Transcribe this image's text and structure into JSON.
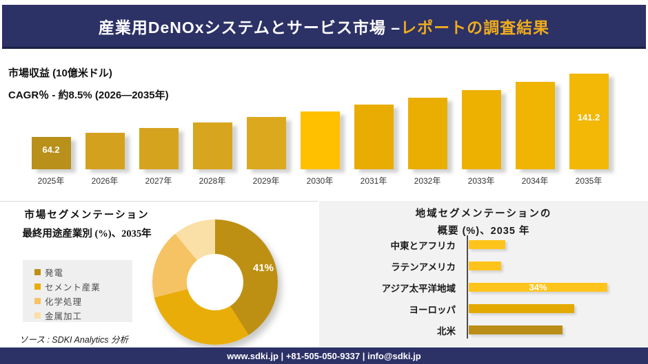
{
  "header": {
    "title_main": "産業用DeNOxシステムとサービス市場 –",
    "title_accent": "レポートの調査結果"
  },
  "revenue_section": {
    "metric_label": "市場収益 (10億米ドル)",
    "cagr_label": "CAGR％ - 約8.5% (2026―2035年)"
  },
  "segmentation_section": {
    "title_line1": "市場セグメンテーション",
    "title_line2": "最終用途産業別 (%)、2035年",
    "highlight_label": "41%"
  },
  "regional_section": {
    "title_line1": "地域セグメンテーションの",
    "title_line2": "概要 (%)、2035 年",
    "highlight_label": "34%"
  },
  "source_note": "ソース : SDKI Analytics 分析",
  "footer": {
    "contact": "www.sdki.jp | +81-505-050-9337 | info@sdki.jp"
  },
  "colors": {
    "navy": "#2C3166",
    "header_accent_yellow": "#EFAC1C"
  },
  "chart_data": [
    {
      "id": "revenue_bars",
      "type": "bar",
      "title": "市場収益 (10億米ドル)",
      "subtitle": "CAGR％ - 約8.5% (2026―2035年)",
      "categories": [
        "2025年",
        "2026年",
        "2027年",
        "2028年",
        "2029年",
        "2030年",
        "2031年",
        "2032年",
        "2033年",
        "2034年",
        "2035年"
      ],
      "values": [
        64.2,
        69.5,
        75.2,
        81.3,
        88.0,
        95.2,
        103.0,
        111.5,
        120.6,
        130.5,
        141.2
      ],
      "shown_data_labels": {
        "2025年": "64.2",
        "2035年": "141.2"
      },
      "intermediate_values_estimated_from_bar_heights": true,
      "ylim": [
        25,
        150
      ],
      "grid": false,
      "legend_position": "none",
      "bar_colors": [
        "#B8901A",
        "#D4A11E",
        "#D6A31E",
        "#D8A51E",
        "#DBA81E",
        "#FFC000",
        "#E8AC02",
        "#EAAE02",
        "#EDB102",
        "#F0B402",
        "#F3B705"
      ]
    },
    {
      "id": "end_use_donut",
      "type": "pie",
      "title": "市場セグメンテーション 最終用途産業別 (%)、2035年",
      "labels": [
        "発電",
        "セメント産業",
        "化学処理",
        "金属加工"
      ],
      "values": [
        41,
        30,
        18,
        11
      ],
      "shown_data_labels": {
        "発電": "41%"
      },
      "values_estimated_from_slice_angles": true,
      "colors": [
        "#BD9014",
        "#E9AD09",
        "#F5C364",
        "#FADFA6"
      ],
      "legend_position": "left",
      "donut_hole_ratio": 0.45
    },
    {
      "id": "regional_bars",
      "type": "bar",
      "orientation": "horizontal",
      "title": "地域セグメンテーションの概要 (%)、2035 年",
      "categories": [
        "中東とアフリカ",
        "ラテンアメリカ",
        "アジア太平洋地域",
        "ヨーロッパ",
        "北米"
      ],
      "values": [
        9,
        8,
        34,
        26,
        23
      ],
      "shown_data_labels": {
        "アジア太平洋地域": "34%"
      },
      "values_estimated_from_bar_lengths": true,
      "xlim": [
        0,
        40
      ],
      "grid": false,
      "bar_colors": [
        "#FFC41C",
        "#FFC41C",
        "#FFC41C",
        "#E3A900",
        "#BA8E16"
      ]
    }
  ]
}
